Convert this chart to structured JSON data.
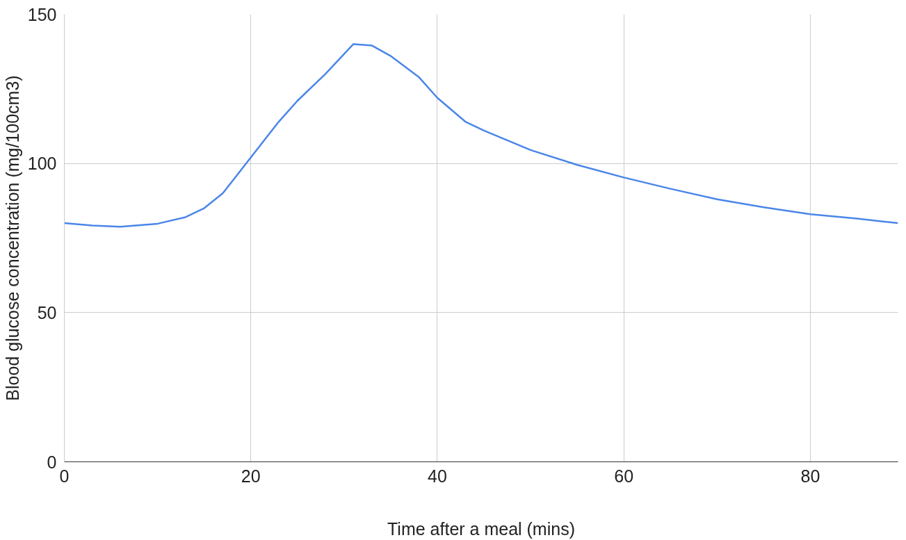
{
  "chart_data": {
    "type": "line",
    "xlabel": "Time after a meal (mins)",
    "ylabel": "Blood glucose concentration (mg/100cm3)",
    "x": [
      0,
      3,
      6,
      10,
      13,
      15,
      17,
      20,
      23,
      25,
      28,
      31,
      33,
      35,
      38,
      40,
      43,
      45,
      50,
      55,
      60,
      65,
      70,
      75,
      80,
      85,
      89.4
    ],
    "series": [
      {
        "color": "#4a86e8",
        "values": [
          80,
          79.2,
          78.8,
          79.8,
          82,
          85,
          90,
          102,
          114,
          121,
          130,
          140,
          139.5,
          136,
          129,
          122,
          114,
          111,
          104.5,
          99.5,
          95.3,
          91.5,
          88,
          85.3,
          83,
          81.5,
          80
        ]
      }
    ],
    "xlim": [
      0,
      89.4
    ],
    "ylim": [
      0,
      150
    ],
    "xticks": [
      0,
      20,
      40,
      60,
      80
    ],
    "yticks": [
      0,
      50,
      100,
      150
    ],
    "grid": true,
    "marker": "none",
    "line_style": "solid"
  }
}
